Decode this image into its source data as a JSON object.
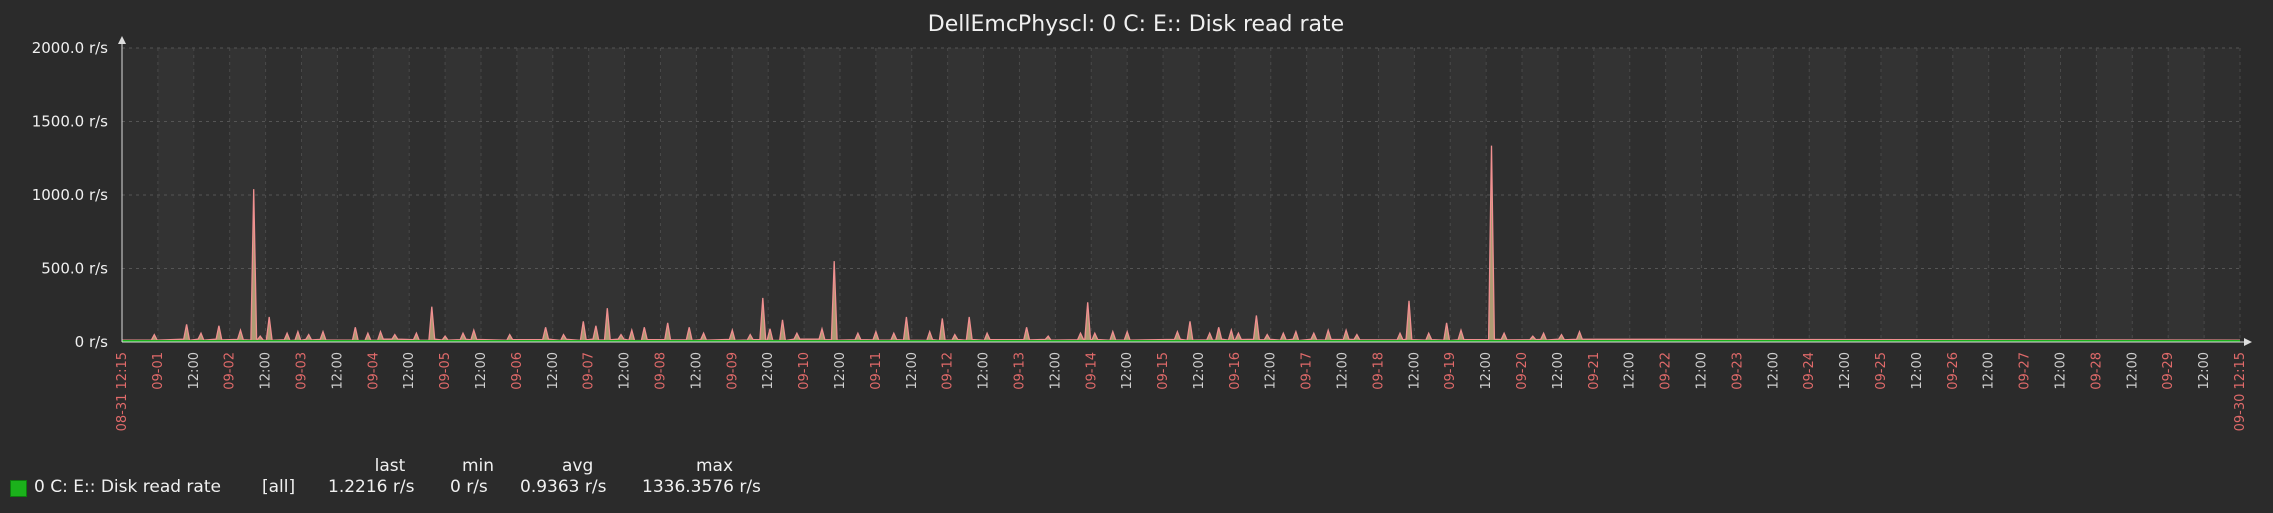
{
  "chart_data": {
    "type": "area",
    "title": "DellEmcPhyscl: 0 C: E:: Disk read rate",
    "y_unit": "r/s",
    "ylim": [
      0,
      2000
    ],
    "y_ticks": [
      "2000.0 r/s",
      "1500.0 r/s",
      "1000.0 r/s",
      "500.0 r/s",
      "0 r/s"
    ],
    "x_range": [
      "08-31 12:15",
      "09-30 12:15"
    ],
    "x_tick_labels": [
      "08-31 12:15",
      "09-01",
      "12:00",
      "09-02",
      "12:00",
      "09-03",
      "12:00",
      "09-04",
      "12:00",
      "09-05",
      "12:00",
      "09-06",
      "12:00",
      "09-07",
      "12:00",
      "09-08",
      "12:00",
      "09-09",
      "12:00",
      "09-10",
      "12:00",
      "09-11",
      "12:00",
      "09-12",
      "12:00",
      "09-13",
      "12:00",
      "09-14",
      "12:00",
      "09-15",
      "12:00",
      "09-16",
      "12:00",
      "09-17",
      "12:00",
      "09-18",
      "12:00",
      "09-19",
      "12:00",
      "09-20",
      "12:00",
      "09-21",
      "12:00",
      "09-22",
      "12:00",
      "09-23",
      "12:00",
      "09-24",
      "12:00",
      "09-25",
      "12:00",
      "09-26",
      "12:00",
      "09-27",
      "12:00",
      "09-28",
      "12:00",
      "09-29",
      "12:00",
      "09-30 12:15"
    ],
    "grid": true,
    "series": [
      {
        "name": "0 C: E:: Disk read rate",
        "color": "#1bb11b",
        "spikes_day_offset": [
          [
            0.9,
            50
          ],
          [
            1.8,
            120
          ],
          [
            2.2,
            60
          ],
          [
            2.7,
            110
          ],
          [
            3.3,
            80
          ],
          [
            3.67,
            1040
          ],
          [
            3.85,
            40
          ],
          [
            4.1,
            170
          ],
          [
            4.6,
            60
          ],
          [
            4.9,
            70
          ],
          [
            5.2,
            50
          ],
          [
            5.6,
            70
          ],
          [
            6.5,
            100
          ],
          [
            6.85,
            60
          ],
          [
            7.2,
            70
          ],
          [
            7.6,
            50
          ],
          [
            8.2,
            60
          ],
          [
            8.63,
            240
          ],
          [
            9.0,
            40
          ],
          [
            9.5,
            60
          ],
          [
            9.8,
            80
          ],
          [
            10.8,
            50
          ],
          [
            11.8,
            100
          ],
          [
            12.3,
            50
          ],
          [
            12.85,
            140
          ],
          [
            13.2,
            110
          ],
          [
            13.52,
            230
          ],
          [
            13.9,
            50
          ],
          [
            14.2,
            80
          ],
          [
            14.55,
            100
          ],
          [
            15.2,
            130
          ],
          [
            15.8,
            100
          ],
          [
            16.2,
            60
          ],
          [
            17.0,
            80
          ],
          [
            17.5,
            50
          ],
          [
            17.85,
            300
          ],
          [
            18.05,
            90
          ],
          [
            18.4,
            150
          ],
          [
            18.8,
            60
          ],
          [
            19.5,
            90
          ],
          [
            19.84,
            550
          ],
          [
            20.5,
            60
          ],
          [
            21.0,
            70
          ],
          [
            21.5,
            60
          ],
          [
            21.85,
            170
          ],
          [
            22.5,
            70
          ],
          [
            22.85,
            160
          ],
          [
            23.2,
            50
          ],
          [
            23.6,
            170
          ],
          [
            24.1,
            60
          ],
          [
            25.2,
            100
          ],
          [
            25.8,
            40
          ],
          [
            26.7,
            60
          ],
          [
            26.9,
            270
          ],
          [
            27.1,
            60
          ],
          [
            27.6,
            70
          ],
          [
            28.0,
            70
          ],
          [
            29.4,
            70
          ],
          [
            29.75,
            140
          ],
          [
            30.3,
            60
          ],
          [
            30.55,
            100
          ],
          [
            30.9,
            80
          ],
          [
            31.1,
            60
          ],
          [
            31.6,
            180
          ],
          [
            31.9,
            50
          ],
          [
            32.35,
            60
          ],
          [
            32.7,
            70
          ],
          [
            33.2,
            60
          ],
          [
            33.6,
            80
          ],
          [
            34.1,
            80
          ],
          [
            34.4,
            50
          ],
          [
            35.6,
            60
          ],
          [
            35.85,
            280
          ],
          [
            36.4,
            60
          ],
          [
            36.9,
            130
          ],
          [
            37.3,
            80
          ],
          [
            38.15,
            1336
          ],
          [
            38.5,
            60
          ],
          [
            39.3,
            40
          ],
          [
            39.6,
            60
          ],
          [
            40.1,
            50
          ],
          [
            40.6,
            70
          ]
        ]
      }
    ]
  },
  "legend": {
    "headers": {
      "last": "last",
      "min": "min",
      "avg": "avg",
      "max": "max"
    },
    "rows": [
      {
        "label": "0 C: E:: Disk read rate",
        "scope": "[all]",
        "last": "1.2216 r/s",
        "min": "0 r/s",
        "avg": "0.9363 r/s",
        "max": "1336.3576 r/s"
      }
    ]
  }
}
